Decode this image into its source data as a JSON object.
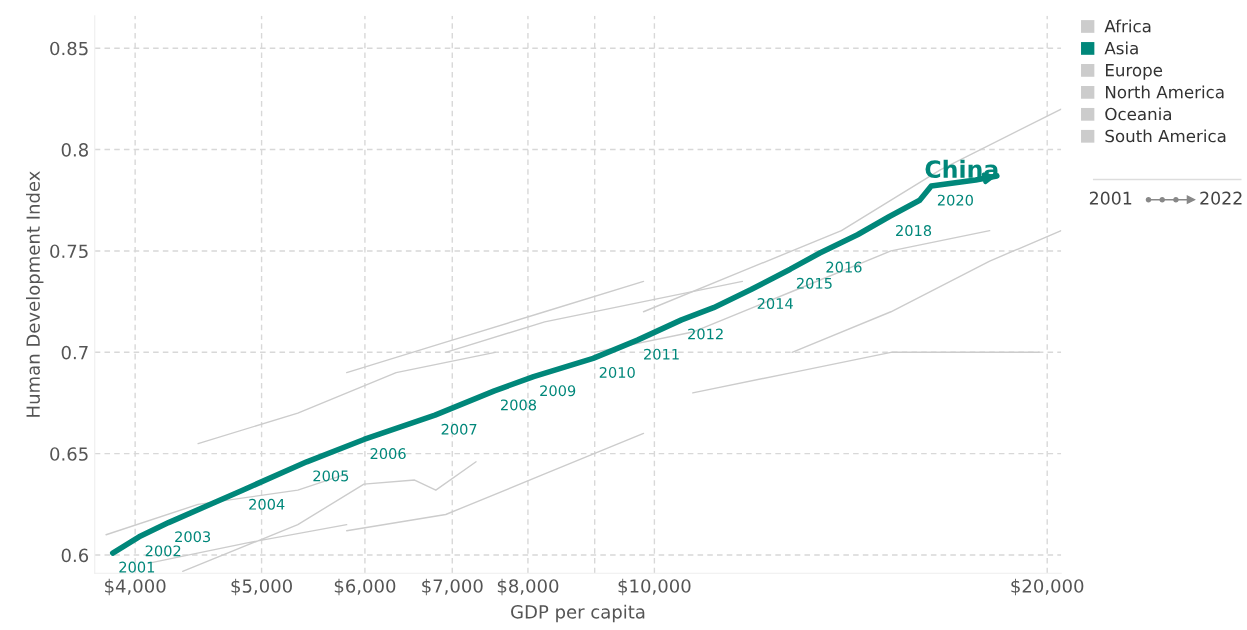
{
  "chart_data": {
    "type": "line",
    "xlabel": "GDP per capita",
    "ylabel": "Human Development Index",
    "log": "x",
    "xlim": [
      3725,
      20500
    ],
    "ylim": [
      0.591,
      0.866
    ],
    "xticks": [
      {
        "value": 4000,
        "label": "$4,000"
      },
      {
        "value": 5000,
        "label": "$5,000"
      },
      {
        "value": 6000,
        "label": "$6,000"
      },
      {
        "value": 7000,
        "label": "$7,000"
      },
      {
        "value": 8000,
        "label": "$8,000"
      },
      {
        "value": 9000,
        "label": null
      },
      {
        "value": 10000,
        "label": "$10,000"
      },
      {
        "value": 20000,
        "label": "$20,000"
      }
    ],
    "yticks": [
      0.6,
      0.65,
      0.7,
      0.75,
      0.8,
      0.85
    ],
    "grid": true,
    "legend": "top right",
    "line_style": "solid",
    "series": [
      {
        "name": "Africa",
        "color": "#cccccc",
        "x": [
          3800,
          4470,
          5330,
          5810,
          null,
          5810,
          6920,
          8240,
          9810,
          null,
          4100,
          4875,
          5810,
          null,
          4350,
          5330,
          5990,
          6550,
          6800,
          7300
        ],
        "values": [
          0.61,
          0.625,
          0.632,
          0.64,
          null,
          0.612,
          0.62,
          0.64,
          0.66,
          null,
          0.596,
          0.606,
          0.615,
          null,
          0.592,
          0.615,
          0.635,
          0.637,
          0.632,
          0.646
        ]
      },
      {
        "name": "Asia",
        "color": "#00877a",
        "x": [
          3845,
          4028,
          4243,
          4835,
          5415,
          5990,
          6790,
          7540,
          8080,
          8975,
          9705,
          10490,
          11100,
          11860,
          12710,
          13390,
          14310,
          15140,
          15970,
          16300,
          17630,
          18300
        ],
        "values": [
          0.601,
          0.609,
          0.616,
          0.632,
          0.646,
          0.657,
          0.669,
          0.681,
          0.688,
          0.697,
          0.706,
          0.716,
          0.722,
          0.731,
          0.741,
          0.749,
          0.758,
          0.767,
          0.775,
          0.782,
          0.785,
          0.787
        ]
      },
      {
        "name": "Europe",
        "color": "#cccccc",
        "x": [
          9810,
          11680,
          13910,
          16560,
          20500,
          null,
          12750,
          15180,
          18070,
          20500
        ],
        "values": [
          0.72,
          0.74,
          0.76,
          0.79,
          0.82,
          null,
          0.7,
          0.72,
          0.745,
          0.76
        ]
      },
      {
        "name": "North America",
        "color": "#cccccc",
        "x": [
          6920,
          8240,
          9810,
          11680,
          null,
          10700,
          12750,
          15180,
          19720
        ],
        "values": [
          0.7,
          0.715,
          0.725,
          0.735,
          null,
          0.68,
          0.69,
          0.7,
          0.7
        ]
      },
      {
        "name": "Oceania",
        "color": "#cccccc",
        "x": [
          4470,
          5330,
          6340,
          7550
        ],
        "values": [
          0.655,
          0.67,
          0.69,
          0.7
        ]
      },
      {
        "name": "South America",
        "color": "#cccccc",
        "x": [
          8990,
          10700,
          12750,
          15180,
          18070,
          null,
          5810,
          6920,
          8240,
          9810
        ],
        "values": [
          0.7,
          0.71,
          0.73,
          0.75,
          0.76,
          null,
          0.69,
          0.705,
          0.72,
          0.735
        ]
      }
    ],
    "annotations": [
      {
        "text": "China",
        "x": 16300,
        "y": 0.782
      },
      {
        "text": "2001",
        "x": 3845,
        "y": 0.601
      },
      {
        "text": "2002",
        "x": 4028,
        "y": 0.609
      },
      {
        "text": "2003",
        "x": 4243,
        "y": 0.616
      },
      {
        "text": "2004",
        "x": 4835,
        "y": 0.632
      },
      {
        "text": "2005",
        "x": 5415,
        "y": 0.646
      },
      {
        "text": "2006",
        "x": 5990,
        "y": 0.657
      },
      {
        "text": "2007",
        "x": 6790,
        "y": 0.669
      },
      {
        "text": "2008",
        "x": 7540,
        "y": 0.681
      },
      {
        "text": "2009",
        "x": 8080,
        "y": 0.688
      },
      {
        "text": "2010",
        "x": 8975,
        "y": 0.697
      },
      {
        "text": "2011",
        "x": 9705,
        "y": 0.706
      },
      {
        "text": "2012",
        "x": 10490,
        "y": 0.716
      },
      {
        "text": "2014",
        "x": 11860,
        "y": 0.731
      },
      {
        "text": "2015",
        "x": 12710,
        "y": 0.741
      },
      {
        "text": "2016",
        "x": 13390,
        "y": 0.749
      },
      {
        "text": "2018",
        "x": 15140,
        "y": 0.767
      },
      {
        "text": "2020",
        "x": 16300,
        "y": 0.782
      },
      "2001",
      "2022"
    ]
  }
}
